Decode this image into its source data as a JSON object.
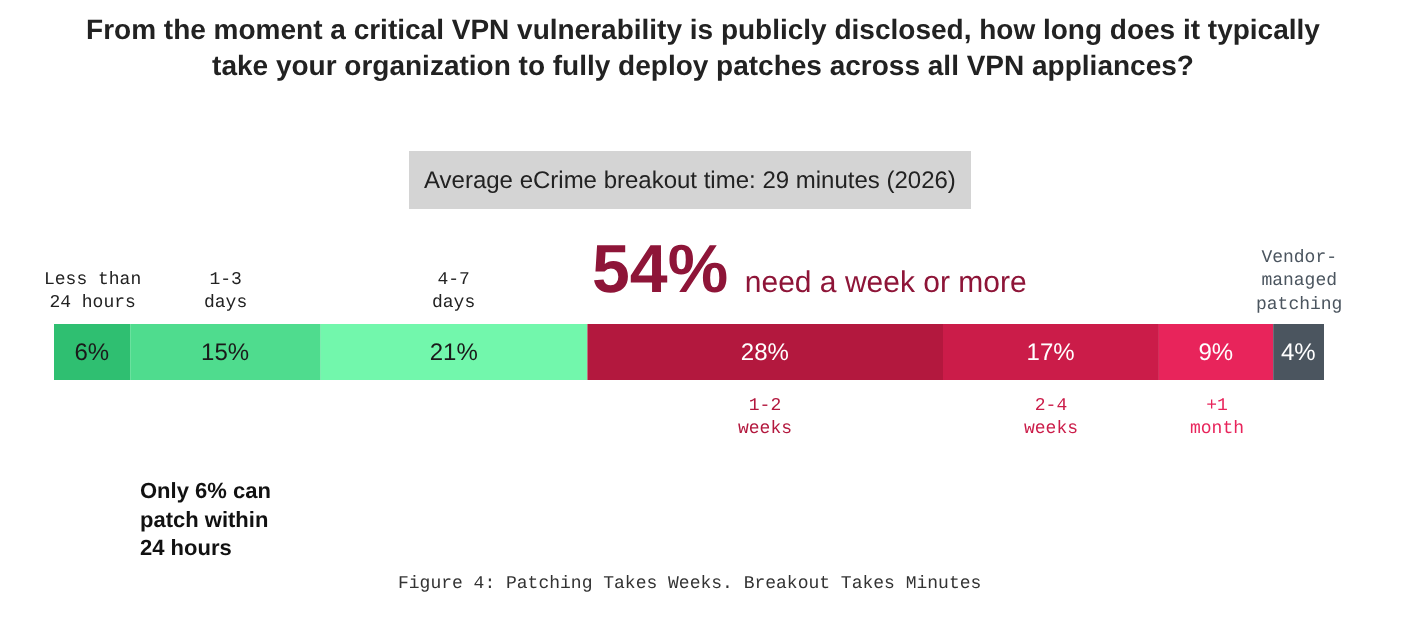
{
  "chart_data": {
    "type": "bar",
    "orientation": "horizontal",
    "stacked": true,
    "title": "From the moment a critical VPN vulnerability is publicly disclosed, how long does it typically take your organization to fully deploy patches across all VPN appliances?",
    "categories": [
      null
    ],
    "series": [
      {
        "name": "Less than 24 hours",
        "color": "#2fbf71",
        "values": [
          6
        ],
        "value_labels": [
          "6%"
        ]
      },
      {
        "name": "1-3 days",
        "color": "#4fdc8e",
        "values": [
          15
        ],
        "value_labels": [
          "15%"
        ]
      },
      {
        "name": "4-7 days",
        "color": "#72f7ac",
        "values": [
          21
        ],
        "value_labels": [
          "21%"
        ]
      },
      {
        "name": "1-2 weeks",
        "color": "#b3183e",
        "values": [
          28
        ],
        "value_labels": [
          "28%"
        ]
      },
      {
        "name": "2-4 weeks",
        "color": "#cb1c49",
        "values": [
          17
        ],
        "value_labels": [
          "17%"
        ]
      },
      {
        "name": "+1 month",
        "color": "#e8245b",
        "values": [
          9
        ],
        "value_labels": [
          "9%"
        ]
      },
      {
        "name": "Vendor-managed patching",
        "color": "#4b555f",
        "values": [
          4
        ],
        "value_labels": [
          "4%"
        ]
      }
    ],
    "annotations": [
      "Average eCrime breakout time: 29 minutes (2026)",
      "54% need a week or more",
      "Only 6% can patch within 24 hours",
      "Figure 4: Patching Takes Weeks. Breakout Takes Minutes"
    ],
    "legend": false,
    "tick_labels": false
  }
}
